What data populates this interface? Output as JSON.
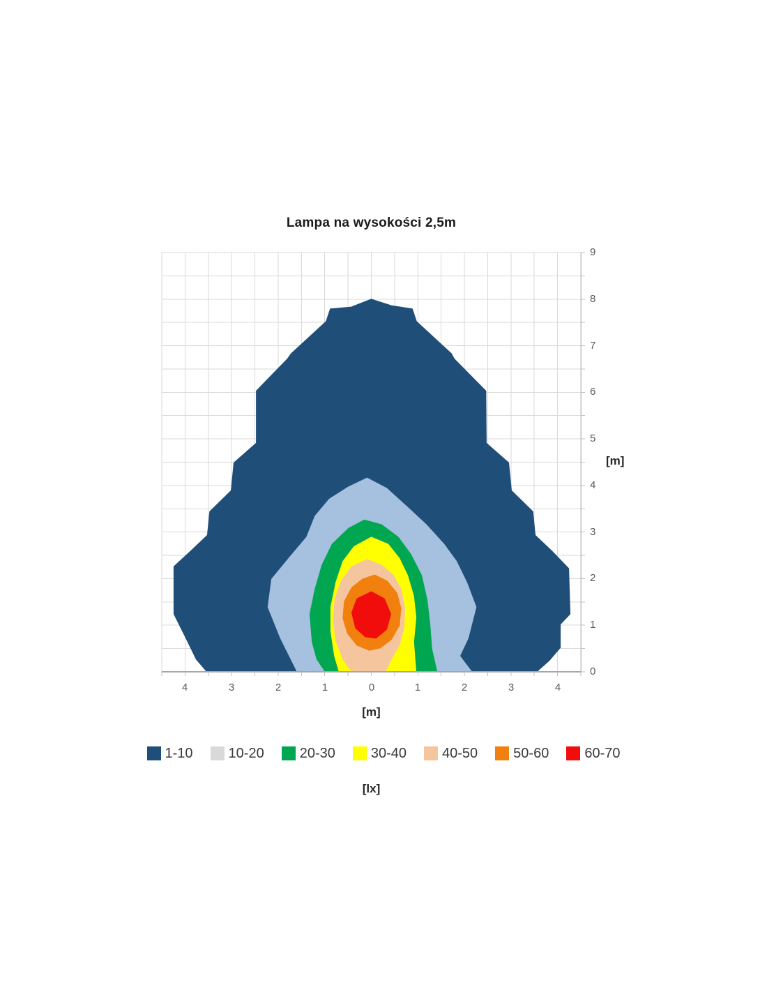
{
  "chart_data": {
    "type": "contour",
    "title": "Lampa na wysokości 2,5m",
    "xlabel": "[m]",
    "ylabel": "[m]",
    "legend_unit": "[lx]",
    "x_range": [
      -4.5,
      4.5
    ],
    "y_range": [
      0,
      9
    ],
    "grid_step": 0.5,
    "grid_on": true,
    "grid_color": "#D9D9D9",
    "axis_color": "#BFBFBF",
    "x_axis_line_color": "#A6A6A6",
    "tick_label_color": "#595959",
    "x_tick_values": [
      -4,
      -3,
      -2,
      -1,
      0,
      1,
      2,
      3,
      4
    ],
    "x_tick_labels": [
      "4",
      "3",
      "2",
      "1",
      "0",
      "1",
      "2",
      "3",
      "4"
    ],
    "y_tick_values": [
      0,
      1,
      2,
      3,
      4,
      5,
      6,
      7,
      8,
      9
    ],
    "y_tick_labels": [
      "0",
      "1",
      "2",
      "3",
      "4",
      "5",
      "6",
      "7",
      "8",
      "9"
    ],
    "legend_position": "bottom",
    "levels": [
      {
        "label": "1-10",
        "color": "#1F4E79",
        "legend_color": "#1F4E79",
        "polygon": [
          [
            0,
            8.0
          ],
          [
            0.43,
            7.86
          ],
          [
            0.88,
            7.79
          ],
          [
            0.97,
            7.52
          ],
          [
            1.72,
            6.83
          ],
          [
            1.78,
            6.72
          ],
          [
            2.46,
            6.03
          ],
          [
            2.47,
            4.91
          ],
          [
            2.95,
            4.49
          ],
          [
            3.01,
            3.89
          ],
          [
            3.47,
            3.44
          ],
          [
            3.52,
            2.93
          ],
          [
            3.88,
            2.59
          ],
          [
            4.24,
            2.22
          ],
          [
            4.27,
            1.24
          ],
          [
            4.06,
            1.02
          ],
          [
            4.06,
            0.52
          ],
          [
            3.82,
            0.24
          ],
          [
            3.55,
            0
          ],
          [
            -3.53,
            0
          ],
          [
            -3.76,
            0.27
          ],
          [
            -4.0,
            0.76
          ],
          [
            -4.24,
            1.24
          ],
          [
            -4.24,
            2.26
          ],
          [
            -3.88,
            2.59
          ],
          [
            -3.52,
            2.93
          ],
          [
            -3.47,
            3.44
          ],
          [
            -3.01,
            3.89
          ],
          [
            -2.95,
            4.49
          ],
          [
            -2.47,
            4.91
          ],
          [
            -2.47,
            6.03
          ],
          [
            -1.8,
            6.72
          ],
          [
            -1.72,
            6.83
          ],
          [
            -0.97,
            7.52
          ],
          [
            -0.88,
            7.79
          ],
          [
            -0.43,
            7.83
          ]
        ]
      },
      {
        "label": "10-20",
        "color": "#A6C0E0",
        "legend_color": "#D9D9D9",
        "polygon": [
          [
            -0.09,
            4.16
          ],
          [
            0.33,
            3.94
          ],
          [
            0.78,
            3.53
          ],
          [
            1.18,
            3.16
          ],
          [
            1.56,
            2.74
          ],
          [
            1.83,
            2.37
          ],
          [
            2.05,
            1.92
          ],
          [
            2.25,
            1.39
          ],
          [
            2.08,
            0.72
          ],
          [
            1.9,
            0.34
          ],
          [
            2.16,
            0
          ],
          [
            -1.59,
            0
          ],
          [
            -1.95,
            0.72
          ],
          [
            -2.22,
            1.39
          ],
          [
            -2.14,
            1.99
          ],
          [
            -1.77,
            2.44
          ],
          [
            -1.39,
            2.89
          ],
          [
            -1.21,
            3.34
          ],
          [
            -0.9,
            3.71
          ],
          [
            -0.49,
            3.97
          ]
        ]
      },
      {
        "label": "20-30",
        "color": "#00A650",
        "legend_color": "#00A650",
        "polygon": [
          [
            -0.15,
            3.26
          ],
          [
            0.22,
            3.16
          ],
          [
            0.58,
            2.89
          ],
          [
            0.85,
            2.52
          ],
          [
            1.08,
            2.07
          ],
          [
            1.2,
            1.54
          ],
          [
            1.26,
            1.02
          ],
          [
            1.3,
            0.49
          ],
          [
            1.41,
            0
          ],
          [
            -0.99,
            0
          ],
          [
            -1.17,
            0.27
          ],
          [
            -1.27,
            0.64
          ],
          [
            -1.32,
            1.24
          ],
          [
            -1.21,
            1.77
          ],
          [
            -1.06,
            2.29
          ],
          [
            -0.84,
            2.74
          ],
          [
            -0.49,
            3.08
          ]
        ]
      },
      {
        "label": "30-40",
        "color": "#FFFF00",
        "legend_color": "#FFFF00",
        "polygon": [
          [
            0,
            2.89
          ],
          [
            0.36,
            2.74
          ],
          [
            0.6,
            2.44
          ],
          [
            0.78,
            2.07
          ],
          [
            0.91,
            1.62
          ],
          [
            0.96,
            1.17
          ],
          [
            0.91,
            0.64
          ],
          [
            0.96,
            0
          ],
          [
            -0.69,
            0
          ],
          [
            -0.79,
            0.34
          ],
          [
            -0.87,
            0.87
          ],
          [
            -0.87,
            1.39
          ],
          [
            -0.76,
            1.92
          ],
          [
            -0.61,
            2.37
          ],
          [
            -0.37,
            2.69
          ]
        ]
      },
      {
        "label": "40-50",
        "color": "#F5C59E",
        "legend_color": "#F5C59E",
        "polygon": [
          [
            -0.09,
            2.41
          ],
          [
            0.22,
            2.29
          ],
          [
            0.48,
            2.07
          ],
          [
            0.64,
            1.77
          ],
          [
            0.72,
            1.36
          ],
          [
            0.7,
            0.94
          ],
          [
            0.6,
            0.57
          ],
          [
            0.43,
            0.27
          ],
          [
            0.3,
            0
          ],
          [
            -0.24,
            0
          ],
          [
            -0.45,
            0.04
          ],
          [
            -0.61,
            0.27
          ],
          [
            -0.76,
            0.67
          ],
          [
            -0.82,
            1.12
          ],
          [
            -0.78,
            1.57
          ],
          [
            -0.64,
            1.96
          ],
          [
            -0.42,
            2.26
          ]
        ]
      },
      {
        "label": "50-60",
        "color": "#F1800E",
        "legend_color": "#F1800E",
        "polygon": [
          [
            0.07,
            2.08
          ],
          [
            0.34,
            1.95
          ],
          [
            0.55,
            1.69
          ],
          [
            0.64,
            1.36
          ],
          [
            0.6,
            0.99
          ],
          [
            0.43,
            0.69
          ],
          [
            0.19,
            0.51
          ],
          [
            -0.04,
            0.46
          ],
          [
            -0.31,
            0.57
          ],
          [
            -0.51,
            0.82
          ],
          [
            -0.61,
            1.15
          ],
          [
            -0.58,
            1.51
          ],
          [
            -0.42,
            1.81
          ],
          [
            -0.19,
            1.99
          ]
        ]
      },
      {
        "label": "60-70",
        "color": "#F20D0D",
        "legend_color": "#F20D0D",
        "polygon": [
          [
            0,
            1.72
          ],
          [
            0.28,
            1.57
          ],
          [
            0.42,
            1.24
          ],
          [
            0.33,
            0.91
          ],
          [
            0.1,
            0.72
          ],
          [
            -0.13,
            0.75
          ],
          [
            -0.34,
            0.94
          ],
          [
            -0.42,
            1.27
          ],
          [
            -0.31,
            1.57
          ]
        ]
      }
    ]
  }
}
